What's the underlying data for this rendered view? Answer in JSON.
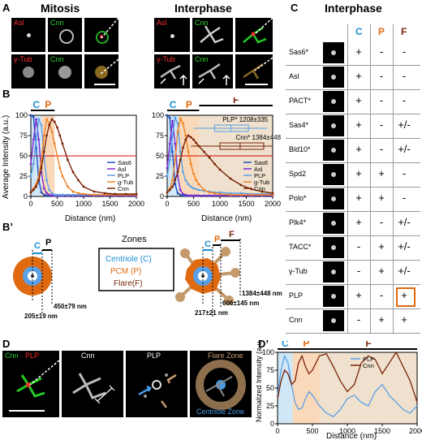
{
  "panels": {
    "A": "A",
    "B": "B",
    "Bp": "B’",
    "C": "C",
    "D": "D",
    "Dp": "D’"
  },
  "headers": {
    "mitosis": "Mitosis",
    "interphase": "Interphase",
    "interphase_c": "Interphase"
  },
  "micro_labels": {
    "asl": "Asl",
    "cnn": "Cnn",
    "gtub": "γ-Tub",
    "plp": "PLP"
  },
  "plot_b": {
    "ylabel": "Average Intensity (a.u.)",
    "xlabel": "Distance (nm)",
    "yticks": [
      "0",
      "25",
      "50",
      "75",
      "100"
    ],
    "xticks": [
      "0",
      "500",
      "1000",
      "1500",
      "2000"
    ],
    "zone_c": "C",
    "zone_p": "P",
    "zone_f": "F",
    "legend": [
      "Sas6",
      "Asl",
      "PLP",
      "g-Tub",
      "Cnn"
    ],
    "plp_box": "PLP* 1208±335",
    "cnn_box": "Cnn* 1384±448"
  },
  "zones_diagram": {
    "title": "Zones",
    "centriole": "Centriole (C)",
    "pcm": "PCM (P)",
    "flare": "Flare(F)",
    "c": "C",
    "p": "P",
    "f": "F",
    "m1_left": "450±79 nm",
    "m2_left": "205±19 nm",
    "m1_right": "1384±448 nm",
    "m2_right": "606±145 nm",
    "m3_right": "217±21 nm"
  },
  "table": {
    "cols": [
      "C",
      "P",
      "F"
    ],
    "rows": [
      {
        "name": "Sas6*",
        "c": "+",
        "p": "-",
        "f": "-"
      },
      {
        "name": "Asl",
        "c": "+",
        "p": "-",
        "f": "-"
      },
      {
        "name": "PACT*",
        "c": "+",
        "p": "-",
        "f": "-"
      },
      {
        "name": "Sas4*",
        "c": "+",
        "p": "-",
        "f": "+/-"
      },
      {
        "name": "Bld10*",
        "c": "+",
        "p": "-",
        "f": "+/-"
      },
      {
        "name": "Spd2",
        "c": "+",
        "p": "+",
        "f": "-"
      },
      {
        "name": "Polo*",
        "c": "+",
        "p": "+",
        "f": "-"
      },
      {
        "name": "Plk4*",
        "c": "+",
        "p": "-",
        "f": "+/-"
      },
      {
        "name": "TACC*",
        "c": "-",
        "p": "+",
        "f": "+/-"
      },
      {
        "name": "γ-Tub",
        "c": "-",
        "p": "+",
        "f": "+/-"
      },
      {
        "name": "PLP",
        "c": "+",
        "p": "-",
        "f": "+"
      },
      {
        "name": "Cnn",
        "c": "-",
        "p": "+",
        "f": "+"
      }
    ]
  },
  "panel_d": {
    "cnn": "Cnn",
    "plp": "PLP",
    "cnn2": "Cnn",
    "plp2": "PLP",
    "flare_zone": "Flare Zone",
    "centriole_zone": "Centriole Zone"
  },
  "plot_dp": {
    "ylabel": "Normalized Intensity (a.u.)",
    "xlabel": "Distance (nm)",
    "yticks": [
      "0",
      "25",
      "50",
      "75",
      "100"
    ],
    "xticks": [
      "0",
      "500",
      "1000",
      "1500",
      "2000"
    ],
    "zone_c": "C",
    "zone_p": "P",
    "zone_f": "F",
    "legend": [
      "PLP",
      "Cnn"
    ]
  },
  "colors": {
    "c_zone": "#1a8fd6",
    "p_zone": "#e06a10",
    "f_zone": "#7a2a10",
    "sas6": "#1f4fbf",
    "asl": "#7a2bd1",
    "plp": "#5aa0e6",
    "gtub": "#f08020",
    "cnn": "#7a2208",
    "thresh": "#d00000"
  },
  "chart_data": [
    {
      "type": "line",
      "title": "Mitosis",
      "xlabel": "Distance (nm)",
      "ylabel": "Average Intensity (a.u.)",
      "xlim": [
        0,
        2000
      ],
      "ylim": [
        0,
        100
      ],
      "threshold": 50,
      "x": [
        0,
        50,
        100,
        150,
        200,
        250,
        300,
        350,
        400,
        450,
        500,
        550,
        600,
        700,
        800,
        900,
        1000,
        1200,
        1400,
        1600,
        1800,
        2000
      ],
      "series": [
        {
          "name": "Sas6",
          "values": [
            100,
            98,
            60,
            20,
            5,
            2,
            1,
            1,
            1,
            1,
            1,
            1,
            1,
            1,
            1,
            1,
            1,
            1,
            1,
            1,
            1,
            1
          ]
        },
        {
          "name": "Asl",
          "values": [
            40,
            70,
            95,
            70,
            30,
            10,
            4,
            2,
            1,
            1,
            1,
            1,
            1,
            1,
            1,
            1,
            1,
            1,
            1,
            1,
            1,
            1
          ]
        },
        {
          "name": "PLP",
          "values": [
            25,
            40,
            70,
            95,
            88,
            50,
            20,
            8,
            4,
            2,
            2,
            2,
            2,
            2,
            2,
            2,
            2,
            2,
            2,
            2,
            2,
            2
          ]
        },
        {
          "name": "g-Tub",
          "values": [
            5,
            10,
            15,
            25,
            45,
            75,
            95,
            90,
            80,
            65,
            50,
            35,
            25,
            12,
            6,
            4,
            3,
            2,
            2,
            2,
            2,
            2
          ]
        },
        {
          "name": "Cnn",
          "values": [
            5,
            8,
            12,
            20,
            35,
            55,
            75,
            88,
            95,
            92,
            85,
            75,
            65,
            45,
            30,
            20,
            12,
            6,
            4,
            3,
            3,
            3
          ]
        }
      ]
    },
    {
      "type": "line",
      "title": "Interphase",
      "xlabel": "Distance (nm)",
      "ylabel": "Average Intensity (a.u.)",
      "xlim": [
        0,
        2000
      ],
      "ylim": [
        0,
        100
      ],
      "threshold": 50,
      "x": [
        0,
        50,
        100,
        150,
        200,
        250,
        300,
        350,
        400,
        450,
        500,
        550,
        600,
        700,
        800,
        900,
        1000,
        1200,
        1400,
        1600,
        1800,
        2000
      ],
      "series": [
        {
          "name": "Sas6",
          "values": [
            100,
            97,
            55,
            15,
            4,
            2,
            1,
            1,
            1,
            1,
            1,
            1,
            1,
            1,
            1,
            1,
            1,
            1,
            1,
            1,
            1,
            1
          ]
        },
        {
          "name": "Asl",
          "values": [
            35,
            65,
            93,
            65,
            25,
            8,
            3,
            2,
            1,
            1,
            1,
            1,
            1,
            1,
            1,
            1,
            1,
            1,
            1,
            1,
            1,
            1
          ]
        },
        {
          "name": "PLP",
          "values": [
            25,
            45,
            75,
            97,
            90,
            55,
            30,
            20,
            15,
            12,
            10,
            9,
            8,
            7,
            6,
            5,
            5,
            4,
            4,
            3,
            3,
            3
          ]
        },
        {
          "name": "g-Tub",
          "values": [
            5,
            10,
            20,
            45,
            80,
            96,
            90,
            75,
            55,
            40,
            28,
            20,
            15,
            8,
            5,
            4,
            3,
            2,
            2,
            2,
            2,
            2
          ]
        },
        {
          "name": "Cnn",
          "values": [
            5,
            8,
            12,
            20,
            30,
            45,
            60,
            70,
            75,
            73,
            70,
            66,
            62,
            55,
            48,
            40,
            33,
            22,
            14,
            9,
            6,
            4
          ]
        }
      ]
    },
    {
      "type": "line",
      "xlabel": "Distance (nm)",
      "ylabel": "Normalized Intensity (a.u.)",
      "xlim": [
        0,
        2000
      ],
      "ylim": [
        0,
        100
      ],
      "x": [
        0,
        50,
        100,
        150,
        200,
        250,
        300,
        350,
        400,
        450,
        500,
        600,
        700,
        800,
        900,
        1000,
        1100,
        1200,
        1300,
        1400,
        1500,
        1600,
        1700,
        1800,
        1900,
        2000
      ],
      "series": [
        {
          "name": "PLP",
          "values": [
            40,
            75,
            95,
            85,
            55,
            30,
            20,
            22,
            35,
            45,
            40,
            25,
            15,
            10,
            20,
            35,
            40,
            30,
            25,
            45,
            55,
            40,
            30,
            20,
            15,
            25
          ]
        },
        {
          "name": "Cnn",
          "values": [
            35,
            60,
            75,
            70,
            55,
            60,
            85,
            95,
            80,
            70,
            75,
            95,
            98,
            80,
            60,
            45,
            55,
            85,
            95,
            90,
            70,
            85,
            100,
            80,
            60,
            30
          ]
        }
      ]
    }
  ]
}
